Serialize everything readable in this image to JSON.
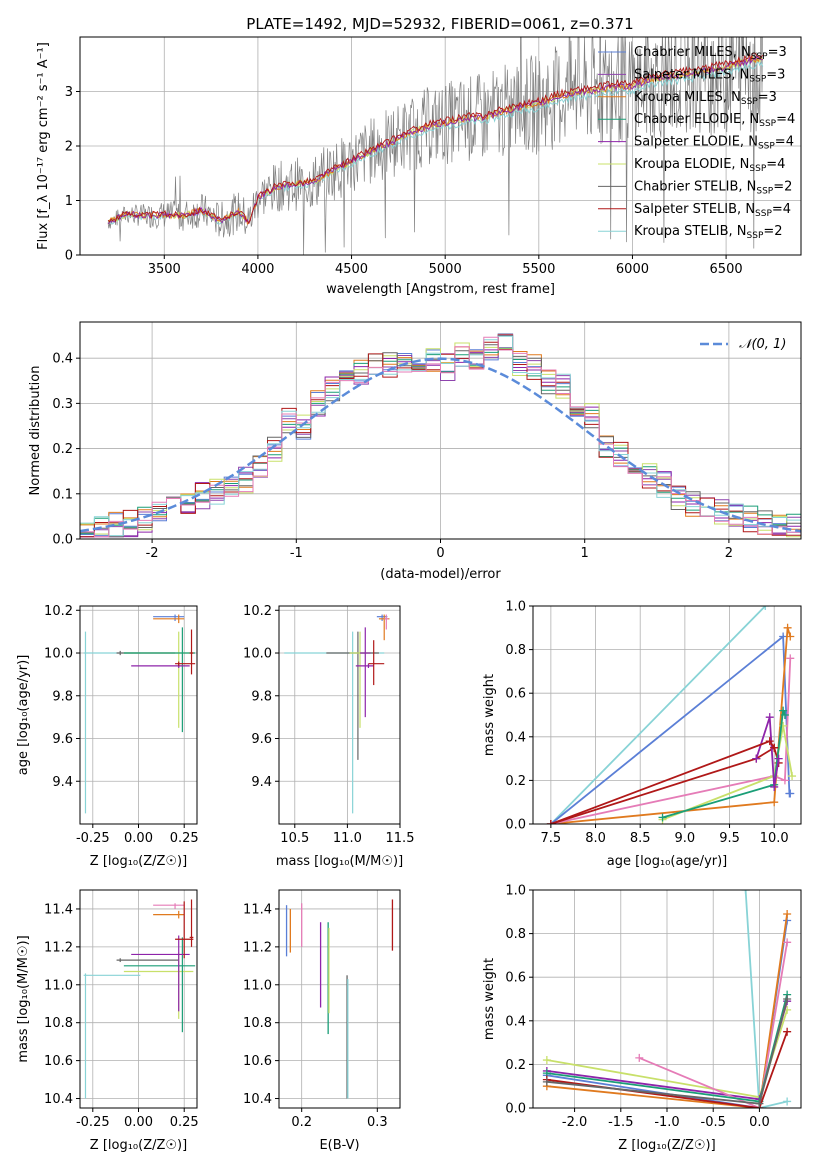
{
  "figure_title": "PLATE=1492, MJD=52932, FIBERID=0061, z=0.371",
  "colors": {
    "c0": "#5b7fd6",
    "c1": "#8e44ad",
    "c2": "#e07a1f",
    "c3": "#1a9e77",
    "c4": "#8e24aa",
    "c5": "#c8e06a",
    "c6": "#666666",
    "c7": "#b01818",
    "c8": "#88d3d6",
    "pink": "#e57cb7",
    "data": "#808080",
    "norm": "#5b8bd9"
  },
  "legend_series": [
    {
      "pre": "Chabrier MILES, N",
      "sub": "SSP",
      "post": "=3",
      "color": "#5b7fd6"
    },
    {
      "pre": "Salpeter MILES, N",
      "sub": "SSP",
      "post": "=3",
      "color": "#8e44ad"
    },
    {
      "pre": "Kroupa MILES, N",
      "sub": "SSP",
      "post": "=3",
      "color": "#e07a1f"
    },
    {
      "pre": "Chabrier ELODIE, N",
      "sub": "SSP",
      "post": "=4",
      "color": "#1a9e77"
    },
    {
      "pre": "Salpeter ELODIE, N",
      "sub": "SSP",
      "post": "=4",
      "color": "#8e24aa"
    },
    {
      "pre": "Kroupa ELODIE, N",
      "sub": "SSP",
      "post": "=4",
      "color": "#c8e06a"
    },
    {
      "pre": "Chabrier STELIB, N",
      "sub": "SSP",
      "post": "=2",
      "color": "#666666"
    },
    {
      "pre": "Salpeter STELIB, N",
      "sub": "SSP",
      "post": "=4",
      "color": "#b01818"
    },
    {
      "pre": "Kroupa STELIB, N",
      "sub": "SSP",
      "post": "=2",
      "color": "#88d3d6"
    }
  ],
  "chart_data": [
    {
      "id": "spectrum",
      "type": "line",
      "xlabel": "wavelength [Angstrom, rest frame]",
      "ylabel": "Flux [f_λ 10⁻¹⁷ erg cm⁻² s⁻¹ A⁻¹]",
      "xlim": [
        3050,
        6900
      ],
      "ylim": [
        0,
        4.0
      ],
      "xticks": [
        3500,
        4000,
        4500,
        5000,
        5500,
        6000,
        6500
      ],
      "yticks": [
        0,
        1,
        2,
        3
      ],
      "model_continuum": [
        [
          3200,
          0.6
        ],
        [
          3300,
          0.75
        ],
        [
          3400,
          0.72
        ],
        [
          3500,
          0.74
        ],
        [
          3600,
          0.72
        ],
        [
          3700,
          0.82
        ],
        [
          3800,
          0.62
        ],
        [
          3900,
          0.8
        ],
        [
          3950,
          0.6
        ],
        [
          4000,
          1.05
        ],
        [
          4100,
          1.25
        ],
        [
          4200,
          1.3
        ],
        [
          4300,
          1.35
        ],
        [
          4400,
          1.55
        ],
        [
          4500,
          1.72
        ],
        [
          4600,
          1.9
        ],
        [
          4700,
          2.05
        ],
        [
          4800,
          2.22
        ],
        [
          4900,
          2.35
        ],
        [
          5000,
          2.42
        ],
        [
          5100,
          2.5
        ],
        [
          5200,
          2.52
        ],
        [
          5300,
          2.62
        ],
        [
          5400,
          2.72
        ],
        [
          5500,
          2.78
        ],
        [
          5600,
          2.9
        ],
        [
          5700,
          2.98
        ],
        [
          5800,
          3.02
        ],
        [
          5900,
          3.08
        ],
        [
          6000,
          3.1
        ],
        [
          6100,
          3.22
        ],
        [
          6200,
          3.28
        ],
        [
          6300,
          3.32
        ],
        [
          6400,
          3.38
        ],
        [
          6500,
          3.45
        ],
        [
          6600,
          3.55
        ],
        [
          6700,
          3.62
        ]
      ]
    },
    {
      "id": "residuals",
      "type": "line",
      "xlabel": "(data-model)/error",
      "ylabel": "Normed distribution",
      "xlim": [
        -2.5,
        2.5
      ],
      "ylim": [
        0,
        0.48
      ],
      "xticks": [
        -2,
        -1,
        0,
        1,
        2
      ],
      "yticks": [
        0.0,
        0.1,
        0.2,
        0.3,
        0.4
      ],
      "normal_label": "𝒩(0, 1)",
      "hist_x": [
        -2.5,
        -2.4,
        -2.3,
        -2.2,
        -2.1,
        -2.0,
        -1.9,
        -1.8,
        -1.7,
        -1.6,
        -1.5,
        -1.4,
        -1.3,
        -1.2,
        -1.1,
        -1.0,
        -0.9,
        -0.8,
        -0.7,
        -0.6,
        -0.5,
        -0.4,
        -0.3,
        -0.2,
        -0.1,
        0.0,
        0.1,
        0.2,
        0.3,
        0.4,
        0.5,
        0.6,
        0.7,
        0.8,
        0.9,
        1.0,
        1.1,
        1.2,
        1.3,
        1.4,
        1.5,
        1.6,
        1.7,
        1.8,
        1.9,
        2.0,
        2.1,
        2.2,
        2.3,
        2.4
      ],
      "hist_base": [
        0.02,
        0.025,
        0.03,
        0.035,
        0.045,
        0.055,
        0.065,
        0.085,
        0.095,
        0.105,
        0.11,
        0.13,
        0.16,
        0.2,
        0.26,
        0.25,
        0.3,
        0.33,
        0.35,
        0.37,
        0.38,
        0.385,
        0.39,
        0.38,
        0.4,
        0.38,
        0.41,
        0.405,
        0.42,
        0.44,
        0.39,
        0.38,
        0.35,
        0.34,
        0.3,
        0.27,
        0.21,
        0.19,
        0.16,
        0.14,
        0.12,
        0.09,
        0.08,
        0.07,
        0.06,
        0.05,
        0.045,
        0.035,
        0.03,
        0.025
      ]
    },
    {
      "id": "age_vs_Z",
      "type": "scatter",
      "xlabel": "Z [log₁₀(Z/Z☉)]",
      "ylabel": "age  [log₁₀(age/yr)]",
      "xlim": [
        -0.32,
        0.32
      ],
      "ylim": [
        9.2,
        10.22
      ],
      "xticks": [
        -0.25,
        0.0,
        0.25
      ],
      "yticks": [
        9.4,
        9.6,
        9.8,
        10.0,
        10.2
      ],
      "points": [
        {
          "x": -0.29,
          "y": 10.0,
          "xerr": [
            0.01,
            0.3
          ],
          "yerr": [
            0.75,
            0.1
          ],
          "color": "#88d3d6"
        },
        {
          "x": -0.1,
          "y": 10.0,
          "xerr": [
            0.02,
            0.3
          ],
          "yerr": [
            0.01,
            0.01
          ],
          "color": "#666666"
        },
        {
          "x": 0.2,
          "y": 10.17,
          "xerr": [
            0.12,
            0.05
          ],
          "yerr": [
            0.02,
            0.01
          ],
          "color": "#5b7fd6"
        },
        {
          "x": 0.22,
          "y": 10.16,
          "xerr": [
            0.14,
            0.03
          ],
          "yerr": [
            0.02,
            0.02
          ],
          "color": "#e07a1f"
        },
        {
          "x": 0.22,
          "y": 10.0,
          "xerr": [
            0.3,
            0.08
          ],
          "yerr": [
            0.35,
            0.1
          ],
          "color": "#c8e06a"
        },
        {
          "x": 0.24,
          "y": 10.0,
          "xerr": [
            0.32,
            0.07
          ],
          "yerr": [
            0.37,
            0.12
          ],
          "color": "#1a9e77"
        },
        {
          "x": 0.22,
          "y": 9.94,
          "xerr": [
            0.26,
            0.06
          ],
          "yerr": [
            0.01,
            0.01
          ],
          "color": "#8e24aa"
        },
        {
          "x": 0.22,
          "y": 9.95,
          "xerr": [
            0.02,
            0.09
          ],
          "yerr": [
            0.01,
            0.01
          ],
          "color": "#b01818"
        },
        {
          "x": 0.29,
          "y": 10.0,
          "xerr": [
            0.01,
            0.01
          ],
          "yerr": [
            0.1,
            0.11
          ],
          "color": "#b01818"
        }
      ]
    },
    {
      "id": "age_vs_mass",
      "type": "scatter",
      "xlabel": "mass [log₁₀(M/M☉)]",
      "ylabel": "",
      "xlim": [
        10.35,
        11.5
      ],
      "ylim": [
        9.2,
        10.22
      ],
      "xticks": [
        10.5,
        11.0,
        11.5
      ],
      "yticks": [
        9.4,
        9.6,
        9.8,
        10.0,
        10.2
      ],
      "points": [
        {
          "x": 11.05,
          "y": 10.0,
          "xerr": [
            0.65,
            0.3
          ],
          "yerr": [
            0.75,
            0.1
          ],
          "color": "#88d3d6"
        },
        {
          "x": 11.1,
          "y": 10.0,
          "xerr": [
            0.3,
            0.2
          ],
          "yerr": [
            0.5,
            0.1
          ],
          "color": "#666666"
        },
        {
          "x": 11.33,
          "y": 10.17,
          "xerr": [
            0.05,
            0.05
          ],
          "yerr": [
            0.02,
            0.01
          ],
          "color": "#5b7fd6"
        },
        {
          "x": 11.35,
          "y": 10.16,
          "xerr": [
            0.05,
            0.05
          ],
          "yerr": [
            0.1,
            0.02
          ],
          "color": "#e07a1f"
        },
        {
          "x": 11.37,
          "y": 10.16,
          "xerr": [
            0.02,
            0.02
          ],
          "yerr": [
            0.05,
            0.02
          ],
          "color": "#e57cb7"
        },
        {
          "x": 11.12,
          "y": 10.0,
          "xerr": [
            0.1,
            0.1
          ],
          "yerr": [
            0.35,
            0.1
          ],
          "color": "#c8e06a"
        },
        {
          "x": 11.2,
          "y": 9.94,
          "xerr": [
            0.12,
            0.05
          ],
          "yerr": [
            0.01,
            0.01
          ],
          "color": "#8e24aa"
        },
        {
          "x": 11.25,
          "y": 9.95,
          "xerr": [
            0.05,
            0.1
          ],
          "yerr": [
            0.1,
            0.11
          ],
          "color": "#b01818"
        },
        {
          "x": 11.17,
          "y": 10.0,
          "xerr": [
            0.05,
            0.05
          ],
          "yerr": [
            0.3,
            0.12
          ],
          "color": "#8e24aa"
        }
      ]
    },
    {
      "id": "weight_vs_age",
      "type": "line",
      "xlabel": "age  [log₁₀(age/yr)]",
      "ylabel": "mass weight",
      "xlim": [
        7.3,
        10.3
      ],
      "ylim": [
        0,
        1.0
      ],
      "xticks": [
        7.5,
        8.0,
        8.5,
        9.0,
        9.5,
        10.0
      ],
      "yticks": [
        0.0,
        0.2,
        0.4,
        0.6,
        0.8,
        1.0
      ],
      "series": [
        {
          "color": "#88d3d6",
          "x": [
            7.5,
            9.9
          ],
          "y": [
            0.0,
            1.0
          ]
        },
        {
          "color": "#5b7fd6",
          "x": [
            7.5,
            10.1,
            10.17,
            10.18
          ],
          "y": [
            0.0,
            0.86,
            0.14,
            0.14
          ]
        },
        {
          "color": "#e07a1f",
          "x": [
            7.5,
            10.0,
            10.15,
            10.18
          ],
          "y": [
            0.0,
            0.1,
            0.9,
            0.86
          ]
        },
        {
          "color": "#e57cb7",
          "x": [
            7.5,
            10.0,
            10.12,
            10.18
          ],
          "y": [
            0.0,
            0.22,
            0.2,
            0.76
          ]
        },
        {
          "color": "#b01818",
          "x": [
            7.5,
            9.8,
            10.0,
            10.05
          ],
          "y": [
            0.0,
            0.3,
            0.35,
            0.28
          ]
        },
        {
          "color": "#c8e06a",
          "x": [
            8.75,
            10.0,
            10.1,
            10.2
          ],
          "y": [
            0.02,
            0.22,
            0.45,
            0.22
          ]
        },
        {
          "color": "#1a9e77",
          "x": [
            8.75,
            10.0,
            10.1,
            10.12
          ],
          "y": [
            0.03,
            0.18,
            0.52,
            0.5
          ]
        },
        {
          "color": "#8e24aa",
          "x": [
            9.8,
            9.95,
            10.0,
            10.05
          ],
          "y": [
            0.3,
            0.49,
            0.17,
            0.3
          ]
        },
        {
          "color": "#b01818",
          "x": [
            7.5,
            9.95,
            10.0
          ],
          "y": [
            0.0,
            0.38,
            0.35
          ]
        }
      ]
    },
    {
      "id": "mass_vs_Z",
      "type": "scatter",
      "xlabel": "Z [log₁₀(Z/Z☉)]",
      "ylabel": "mass [log₁₀(M/M☉)]",
      "xlim": [
        -0.32,
        0.32
      ],
      "ylim": [
        10.35,
        11.5
      ],
      "xticks": [
        -0.25,
        0.0,
        0.25
      ],
      "yticks": [
        10.4,
        10.6,
        10.8,
        11.0,
        11.2,
        11.4
      ],
      "points": [
        {
          "x": -0.29,
          "y": 11.05,
          "xerr": [
            0.01,
            0.3
          ],
          "yerr": [
            0.65,
            0.01
          ],
          "color": "#88d3d6"
        },
        {
          "x": -0.1,
          "y": 11.13,
          "xerr": [
            0.02,
            0.32
          ],
          "yerr": [
            0.01,
            0.01
          ],
          "color": "#666666"
        },
        {
          "x": 0.2,
          "y": 11.42,
          "xerr": [
            0.12,
            0.05
          ],
          "yerr": [
            0.02,
            0.01
          ],
          "color": "#e57cb7"
        },
        {
          "x": 0.22,
          "y": 11.37,
          "xerr": [
            0.14,
            0.03
          ],
          "yerr": [
            0.02,
            0.02
          ],
          "color": "#e07a1f"
        },
        {
          "x": 0.22,
          "y": 11.07,
          "xerr": [
            0.3,
            0.08
          ],
          "yerr": [
            0.25,
            0.1
          ],
          "color": "#c8e06a"
        },
        {
          "x": 0.24,
          "y": 11.1,
          "xerr": [
            0.32,
            0.07
          ],
          "yerr": [
            0.35,
            0.15
          ],
          "color": "#1a9e77"
        },
        {
          "x": 0.22,
          "y": 11.16,
          "xerr": [
            0.26,
            0.06
          ],
          "yerr": [
            0.3,
            0.1
          ],
          "color": "#8e24aa"
        },
        {
          "x": 0.25,
          "y": 11.24,
          "xerr": [
            0.05,
            0.05
          ],
          "yerr": [
            0.1,
            0.2
          ],
          "color": "#b01818"
        },
        {
          "x": 0.29,
          "y": 11.25,
          "xerr": [
            0.01,
            0.01
          ],
          "yerr": [
            0.05,
            0.2
          ],
          "color": "#b01818"
        }
      ]
    },
    {
      "id": "mass_vs_ebv",
      "type": "scatter",
      "xlabel": "E(B-V)",
      "ylabel": "",
      "xlim": [
        0.17,
        0.33
      ],
      "ylim": [
        10.35,
        11.5
      ],
      "xticks": [
        0.2,
        0.3
      ],
      "yticks": [
        10.4,
        10.6,
        10.8,
        11.0,
        11.2,
        11.4
      ],
      "segments": [
        {
          "x": 0.18,
          "y1": 11.15,
          "y2": 11.42,
          "color": "#5b7fd6"
        },
        {
          "x": 0.185,
          "y1": 11.17,
          "y2": 11.4,
          "color": "#e07a1f"
        },
        {
          "x": 0.2,
          "y1": 11.2,
          "y2": 11.43,
          "color": "#e57cb7"
        },
        {
          "x": 0.225,
          "y1": 10.88,
          "y2": 11.33,
          "color": "#8e24aa"
        },
        {
          "x": 0.235,
          "y1": 10.74,
          "y2": 11.33,
          "color": "#1a9e77"
        },
        {
          "x": 0.236,
          "y1": 10.85,
          "y2": 11.3,
          "color": "#c8e06a"
        },
        {
          "x": 0.26,
          "y1": 10.4,
          "y2": 11.05,
          "color": "#666666"
        },
        {
          "x": 0.261,
          "y1": 10.4,
          "y2": 11.03,
          "color": "#88d3d6"
        },
        {
          "x": 0.32,
          "y1": 11.18,
          "y2": 11.45,
          "color": "#b01818"
        }
      ]
    },
    {
      "id": "weight_vs_Z",
      "type": "line",
      "xlabel": "Z [log₁₀(Z/Z☉)]",
      "ylabel": "mass weight",
      "xlim": [
        -2.45,
        0.45
      ],
      "ylim": [
        0,
        1.0
      ],
      "xticks": [
        -2.0,
        -1.5,
        -1.0,
        -0.5,
        0.0
      ],
      "yticks": [
        0.0,
        0.2,
        0.4,
        0.6,
        0.8,
        1.0
      ],
      "series": [
        {
          "color": "#88d3d6",
          "x": [
            -0.15,
            0.0,
            0.3
          ],
          "y": [
            1.0,
            0.0,
            0.03
          ]
        },
        {
          "color": "#c8e06a",
          "x": [
            -2.3,
            0.0,
            0.3
          ],
          "y": [
            0.22,
            0.05,
            0.45
          ]
        },
        {
          "color": "#8e24aa",
          "x": [
            -2.3,
            0.0,
            0.3
          ],
          "y": [
            0.17,
            0.04,
            0.49
          ]
        },
        {
          "color": "#5b7fd6",
          "x": [
            -2.3,
            0.0,
            0.3
          ],
          "y": [
            0.15,
            0.0,
            0.86
          ]
        },
        {
          "color": "#e07a1f",
          "x": [
            -2.3,
            0.0,
            0.3
          ],
          "y": [
            0.1,
            0.0,
            0.89
          ]
        },
        {
          "color": "#e57cb7",
          "x": [
            -1.3,
            0.0,
            0.3
          ],
          "y": [
            0.23,
            0.0,
            0.76
          ]
        },
        {
          "color": "#1a9e77",
          "x": [
            -2.3,
            0.0,
            0.3
          ],
          "y": [
            0.16,
            0.03,
            0.52
          ]
        },
        {
          "color": "#b01818",
          "x": [
            -2.3,
            0.0,
            0.3
          ],
          "y": [
            0.13,
            0.0,
            0.35
          ]
        },
        {
          "color": "#666666",
          "x": [
            -2.3,
            0.0,
            0.3
          ],
          "y": [
            0.12,
            0.02,
            0.5
          ]
        }
      ]
    }
  ]
}
